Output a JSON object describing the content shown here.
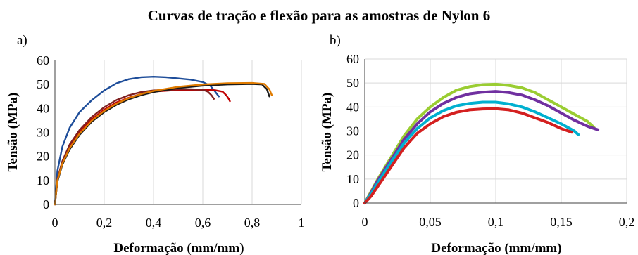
{
  "title": "Curvas de tração e flexão para as amostras de Nylon 6",
  "chart_data": [
    {
      "panel": "a)",
      "type": "line",
      "xlabel": "Deformação (mm/mm)",
      "ylabel": "Tensão (MPa)",
      "xlim": [
        0,
        1
      ],
      "ylim": [
        0,
        60
      ],
      "xticks": [
        0,
        0.2,
        0.4,
        0.6,
        0.8,
        1
      ],
      "xtick_labels": [
        "0",
        "0,2",
        "0,4",
        "0,6",
        "0,8",
        "1"
      ],
      "yticks": [
        0,
        10,
        20,
        30,
        40,
        50,
        60
      ],
      "ytick_labels": [
        "0",
        "10",
        "20",
        "30",
        "40",
        "50",
        "60"
      ],
      "grid": "vertical",
      "series": [
        {
          "color": "#1f4e9a",
          "x": [
            0,
            0.01,
            0.03,
            0.06,
            0.1,
            0.15,
            0.2,
            0.25,
            0.3,
            0.35,
            0.4,
            0.45,
            0.5,
            0.55,
            0.6,
            0.63,
            0.65,
            0.665
          ],
          "y": [
            0,
            14,
            24,
            32,
            38.5,
            43.5,
            47.5,
            50.5,
            52.2,
            53,
            53.2,
            53,
            52.5,
            52,
            51,
            49.5,
            47,
            45
          ]
        },
        {
          "color": "#c00000",
          "x": [
            0,
            0.01,
            0.03,
            0.06,
            0.1,
            0.15,
            0.2,
            0.25,
            0.3,
            0.35,
            0.4,
            0.5,
            0.6,
            0.65,
            0.68,
            0.695,
            0.705,
            0.71
          ],
          "y": [
            0,
            10,
            17.5,
            24,
            30,
            35.5,
            39.5,
            42.5,
            44.5,
            46,
            47,
            47.7,
            47.8,
            47.6,
            47,
            45.5,
            44,
            43
          ]
        },
        {
          "color": "#7f2020",
          "x": [
            0,
            0.01,
            0.03,
            0.06,
            0.1,
            0.15,
            0.2,
            0.25,
            0.3,
            0.35,
            0.4,
            0.5,
            0.55,
            0.6,
            0.62,
            0.635,
            0.645
          ],
          "y": [
            0,
            10.5,
            18,
            25,
            31,
            36.5,
            40.5,
            43.5,
            45.5,
            46.8,
            47.5,
            48,
            48,
            47.8,
            47,
            45.5,
            44
          ]
        },
        {
          "color": "#1a1a1a",
          "x": [
            0,
            0.01,
            0.03,
            0.06,
            0.1,
            0.15,
            0.2,
            0.25,
            0.3,
            0.35,
            0.4,
            0.5,
            0.6,
            0.7,
            0.8,
            0.84,
            0.86,
            0.87
          ],
          "y": [
            0,
            9.5,
            16.5,
            23,
            29,
            34.5,
            38.5,
            41.5,
            43.8,
            45.5,
            46.8,
            48.5,
            49.5,
            50,
            50.2,
            50,
            48,
            45
          ]
        },
        {
          "color": "#e07b00",
          "x": [
            0,
            0.01,
            0.03,
            0.06,
            0.1,
            0.15,
            0.2,
            0.25,
            0.3,
            0.35,
            0.4,
            0.5,
            0.6,
            0.7,
            0.8,
            0.85,
            0.87,
            0.88
          ],
          "y": [
            0,
            10,
            17,
            23.5,
            29.5,
            35,
            39,
            42,
            44.3,
            46,
            47.3,
            49,
            50,
            50.5,
            50.6,
            50.2,
            48,
            45.5
          ]
        }
      ]
    },
    {
      "panel": "b)",
      "type": "line",
      "xlabel": "Deformação (mm/mm)",
      "ylabel": "Tensão (MPa)",
      "xlim": [
        0,
        0.2
      ],
      "ylim": [
        0,
        60
      ],
      "xticks": [
        0,
        0.05,
        0.1,
        0.15,
        0.2
      ],
      "xtick_labels": [
        "0",
        "0,05",
        "0,1",
        "0,15",
        "0,2"
      ],
      "yticks": [
        0,
        10,
        20,
        30,
        40,
        50,
        60
      ],
      "ytick_labels": [
        "0",
        "10",
        "20",
        "30",
        "40",
        "50",
        "60"
      ],
      "grid": "both",
      "series": [
        {
          "color": "#9acd32",
          "x": [
            0,
            0.005,
            0.01,
            0.02,
            0.03,
            0.04,
            0.05,
            0.06,
            0.07,
            0.08,
            0.09,
            0.1,
            0.11,
            0.12,
            0.13,
            0.14,
            0.15,
            0.16,
            0.17,
            0.175
          ],
          "y": [
            0,
            5,
            10,
            19,
            28,
            35,
            40,
            44,
            47,
            48.5,
            49.3,
            49.5,
            49,
            48,
            46,
            43,
            40,
            37,
            34,
            31.5
          ]
        },
        {
          "color": "#7030a0",
          "x": [
            0,
            0.005,
            0.01,
            0.02,
            0.03,
            0.04,
            0.05,
            0.06,
            0.07,
            0.08,
            0.09,
            0.1,
            0.11,
            0.12,
            0.13,
            0.14,
            0.15,
            0.16,
            0.17,
            0.178
          ],
          "y": [
            0,
            4.5,
            9.5,
            18,
            26.5,
            33,
            38,
            41.5,
            44,
            45.5,
            46.2,
            46.5,
            46,
            45,
            43,
            40.5,
            37.5,
            34.5,
            32,
            30.5
          ]
        },
        {
          "color": "#00b0d0",
          "x": [
            0,
            0.005,
            0.01,
            0.02,
            0.03,
            0.04,
            0.05,
            0.06,
            0.07,
            0.08,
            0.09,
            0.1,
            0.11,
            0.12,
            0.13,
            0.14,
            0.15,
            0.16,
            0.163
          ],
          "y": [
            0,
            4,
            8.5,
            17,
            25,
            31,
            35.5,
            38.5,
            40.5,
            41.5,
            42,
            42,
            41.3,
            40,
            38,
            35.5,
            33,
            30,
            28.5
          ]
        },
        {
          "color": "#d42020",
          "x": [
            0,
            0.005,
            0.01,
            0.02,
            0.03,
            0.04,
            0.05,
            0.06,
            0.07,
            0.08,
            0.09,
            0.1,
            0.11,
            0.12,
            0.13,
            0.14,
            0.15,
            0.158
          ],
          "y": [
            0,
            3,
            7,
            15,
            23,
            29,
            33,
            36,
            37.8,
            38.8,
            39.2,
            39.3,
            38.8,
            37.5,
            35.5,
            33.5,
            31,
            29.5
          ]
        }
      ]
    }
  ]
}
